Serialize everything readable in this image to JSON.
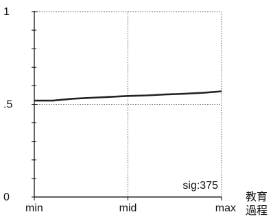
{
  "chart_data": {
    "type": "line",
    "title": "",
    "xlabel": "教育過程",
    "xlabel_lines": [
      "教育",
      "過程"
    ],
    "ylabel": "",
    "x_ticks": [
      "min",
      "mid",
      "max"
    ],
    "y_ticks": [
      "0",
      ".5",
      "1"
    ],
    "ylim": [
      0,
      1
    ],
    "grid": true,
    "annotation": "sig:375",
    "series": [
      {
        "x": [
          0,
          0.1,
          0.2,
          0.3,
          0.4,
          0.5,
          0.6,
          0.7,
          0.8,
          0.9,
          1.0
        ],
        "values": [
          0.52,
          0.52,
          0.53,
          0.535,
          0.54,
          0.545,
          0.548,
          0.553,
          0.557,
          0.562,
          0.57
        ]
      }
    ],
    "colors": {
      "line": "#222222",
      "grid": "#555555",
      "axis": "#000000"
    }
  }
}
